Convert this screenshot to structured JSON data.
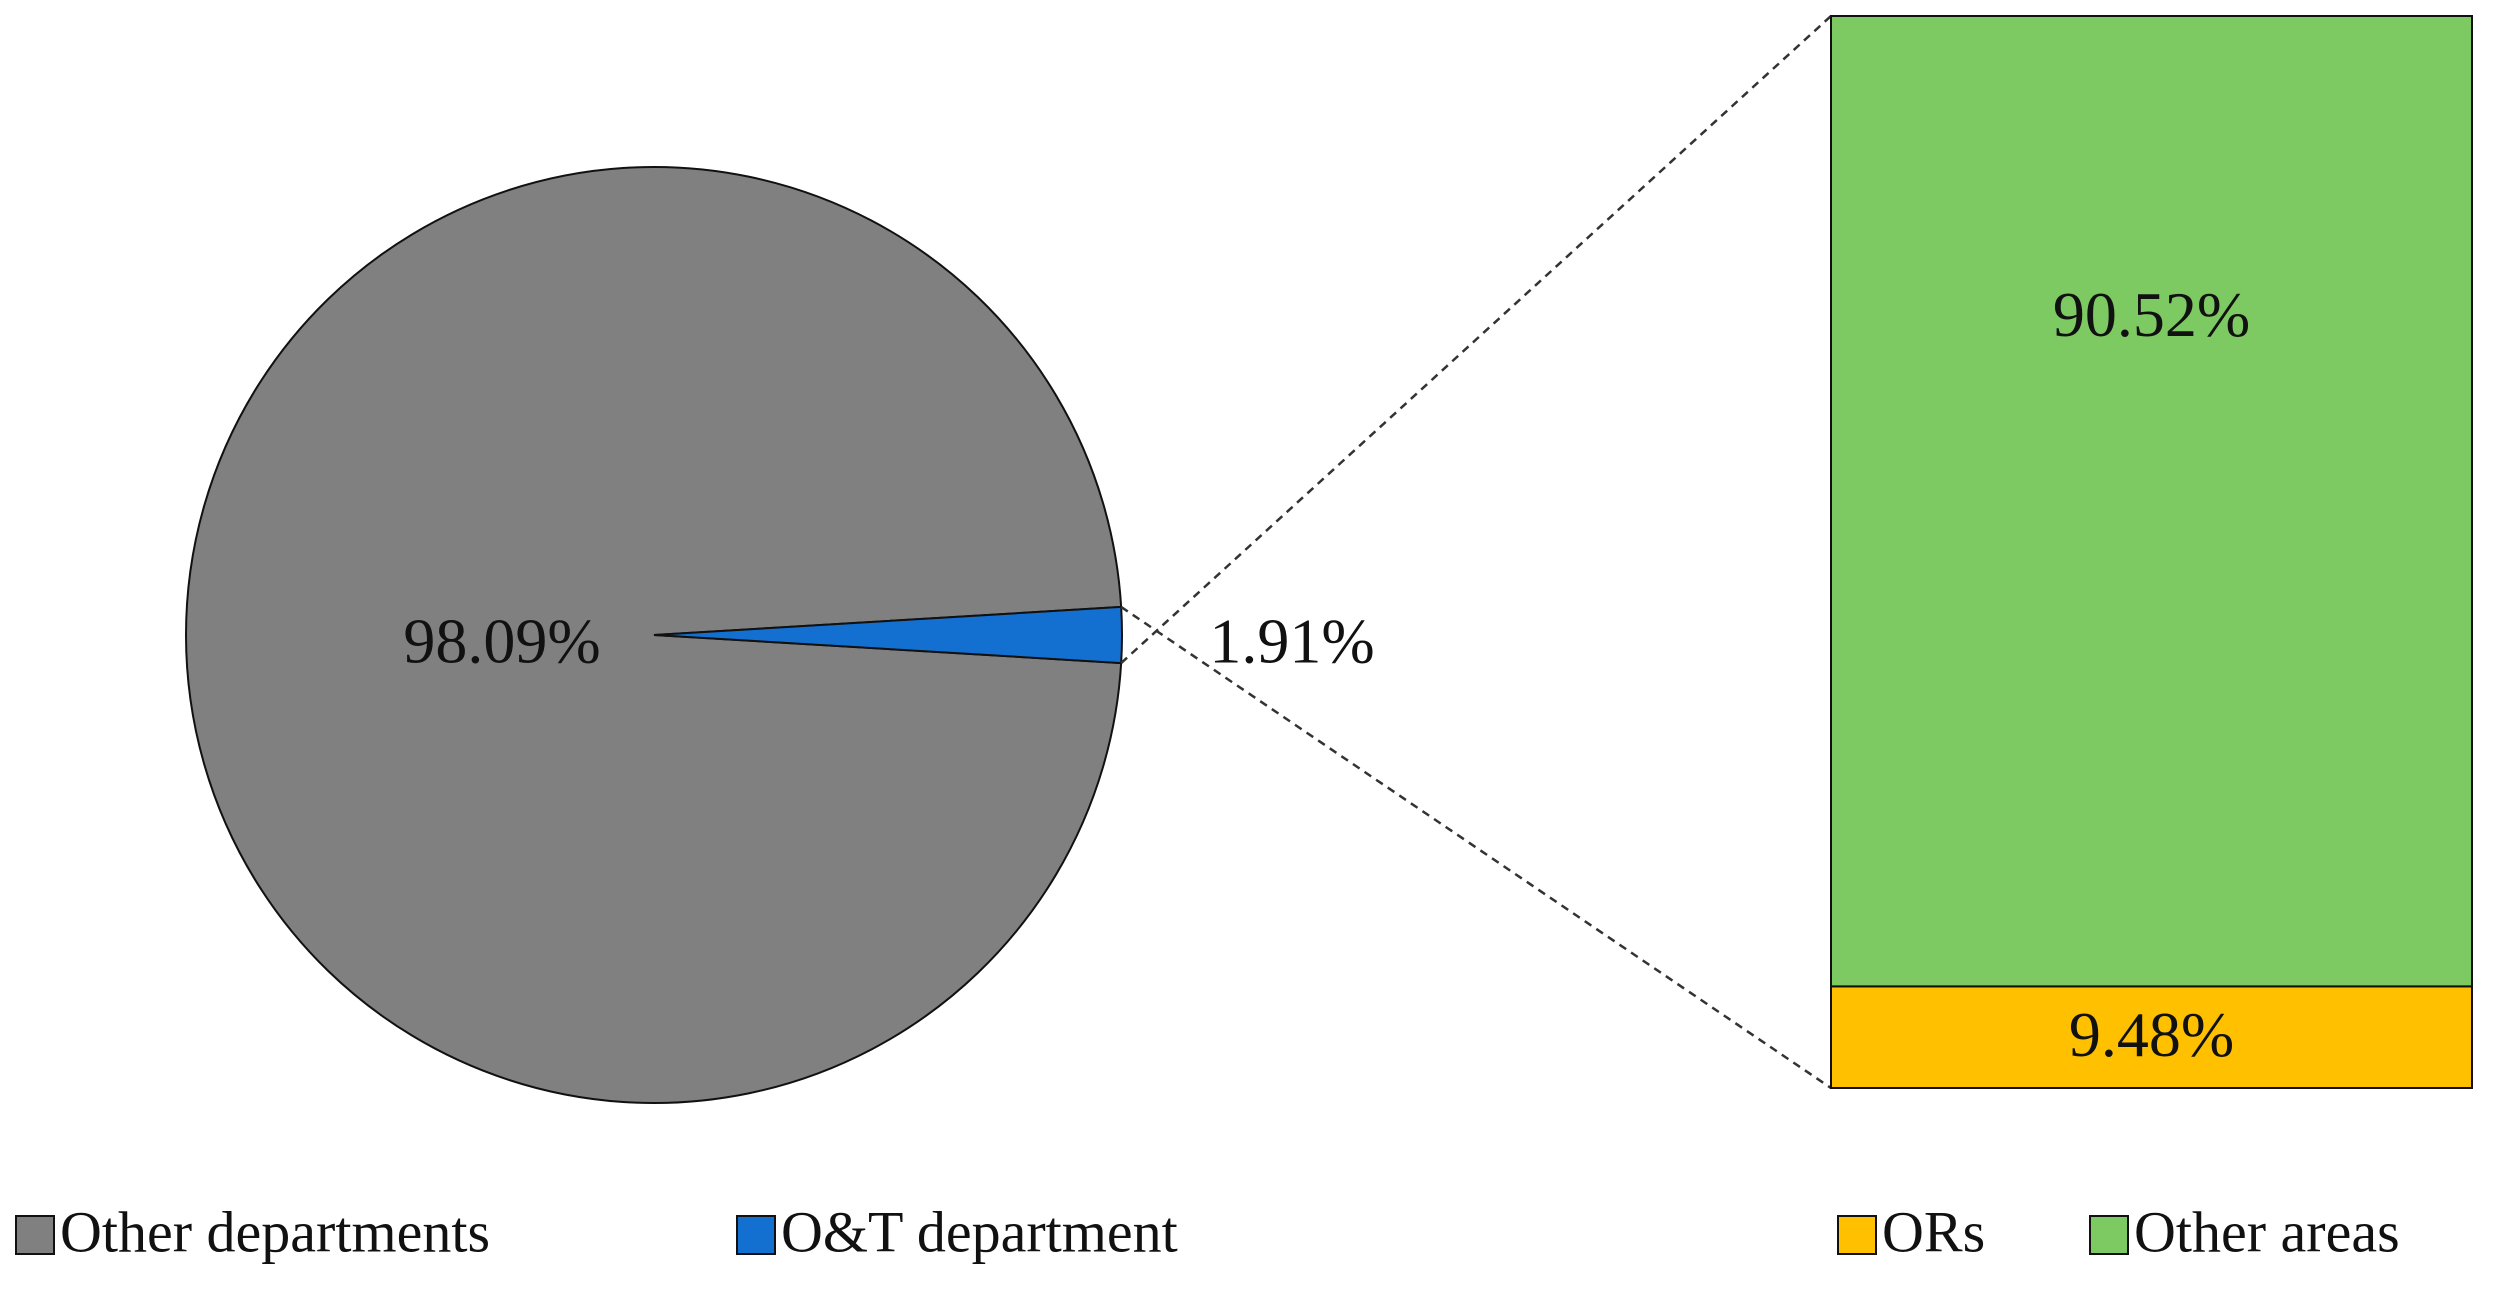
{
  "chart_data": [
    {
      "type": "pie",
      "categories": [
        "Other departments",
        "O&T department"
      ],
      "values": [
        98.09,
        1.91
      ],
      "value_labels": [
        "98.09%",
        "1.91%"
      ],
      "colors": [
        "#808080",
        "#1470d0"
      ]
    },
    {
      "type": "bar",
      "stacked": true,
      "series": [
        {
          "name": "ORs",
          "color": "#ffc000",
          "values": [
            9.48
          ],
          "value_labels": [
            "9.48%"
          ]
        },
        {
          "name": "Other areas",
          "color": "#7dc962",
          "values": [
            90.52
          ],
          "value_labels": [
            "90.52%"
          ]
        }
      ]
    }
  ]
}
